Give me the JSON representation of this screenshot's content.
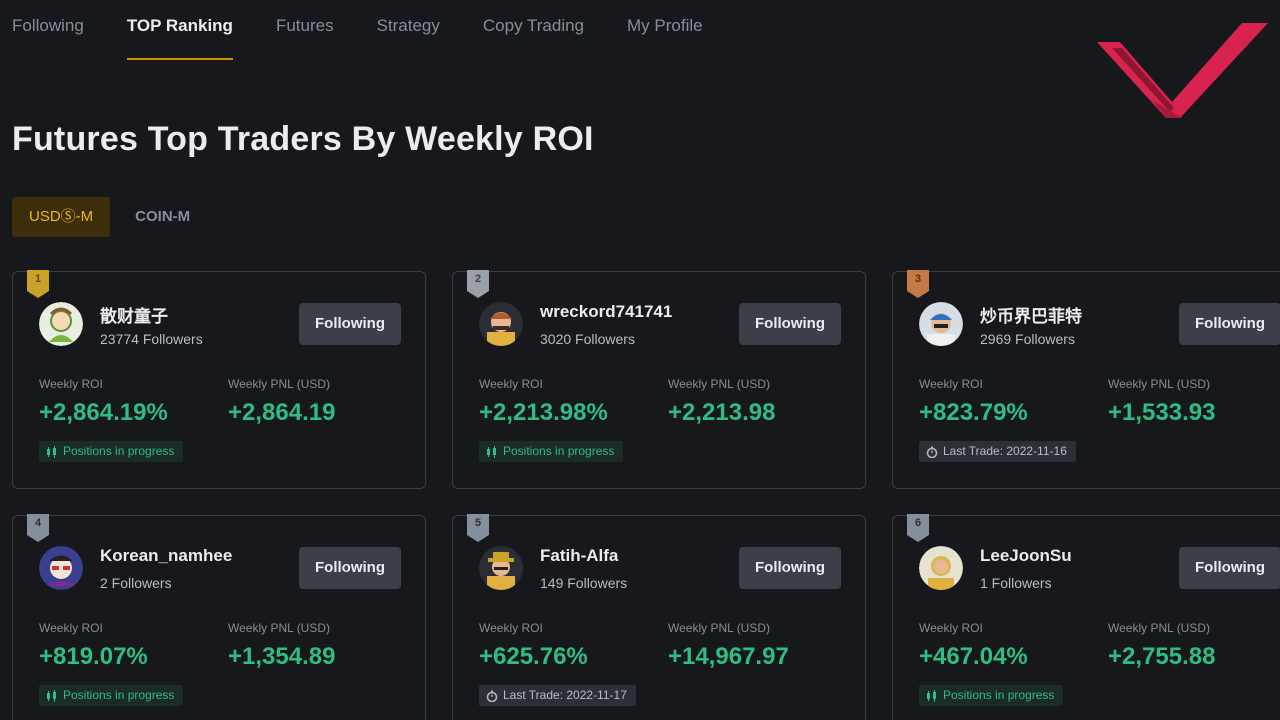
{
  "nav": {
    "tabs": [
      {
        "label": "Following"
      },
      {
        "label": "TOP Ranking",
        "active": true
      },
      {
        "label": "Futures"
      },
      {
        "label": "Strategy"
      },
      {
        "label": "Copy Trading"
      },
      {
        "label": "My Profile"
      }
    ]
  },
  "page": {
    "title": "Futures Top Traders By Weekly ROI"
  },
  "market": {
    "usds_m": "USDⓈ-M",
    "coin_m": "COIN-M",
    "selected": "USDⓈ-M"
  },
  "labels": {
    "weekly_roi": "Weekly ROI",
    "weekly_pnl": "Weekly PNL (USD)"
  },
  "colors": {
    "accent": "#f0b90b",
    "positive": "#2ebd85",
    "gold": "#c9a227",
    "silver": "#9aa0a8",
    "bronze": "#c47a45",
    "logo": "#d9234f"
  },
  "traders": [
    {
      "rank": "1",
      "name": "散财童子",
      "followers": "23774 Followers",
      "button": "Following",
      "roi": "+2,864.19%",
      "pnl": "+2,864.19",
      "status": "Positions in progress",
      "status_type": "progress",
      "medal": "gold"
    },
    {
      "rank": "2",
      "name": "wreckord741741",
      "followers": "3020 Followers",
      "button": "Following",
      "roi": "+2,213.98%",
      "pnl": "+2,213.98",
      "status": "Positions in progress",
      "status_type": "progress",
      "medal": "silver"
    },
    {
      "rank": "3",
      "name": "炒币界巴菲特",
      "followers": "2969 Followers",
      "button": "Following",
      "roi": "+823.79%",
      "pnl": "+1,533.93",
      "status": "Last Trade: 2022-11-16",
      "status_type": "last",
      "medal": "bronze"
    },
    {
      "rank": "4",
      "name": "Korean_namhee",
      "followers": "2 Followers",
      "button": "Following",
      "roi": "+819.07%",
      "pnl": "+1,354.89",
      "status": "Positions in progress",
      "status_type": "progress",
      "medal": "plain"
    },
    {
      "rank": "5",
      "name": "Fatih-Alfa",
      "followers": "149 Followers",
      "button": "Following",
      "roi": "+625.76%",
      "pnl": "+14,967.97",
      "status": "Last Trade: 2022-11-17",
      "status_type": "last",
      "medal": "plain"
    },
    {
      "rank": "6",
      "name": "LeeJoonSu",
      "followers": "1 Followers",
      "button": "Following",
      "roi": "+467.04%",
      "pnl": "+2,755.88",
      "status": "Positions in progress",
      "status_type": "progress",
      "medal": "plain"
    }
  ]
}
